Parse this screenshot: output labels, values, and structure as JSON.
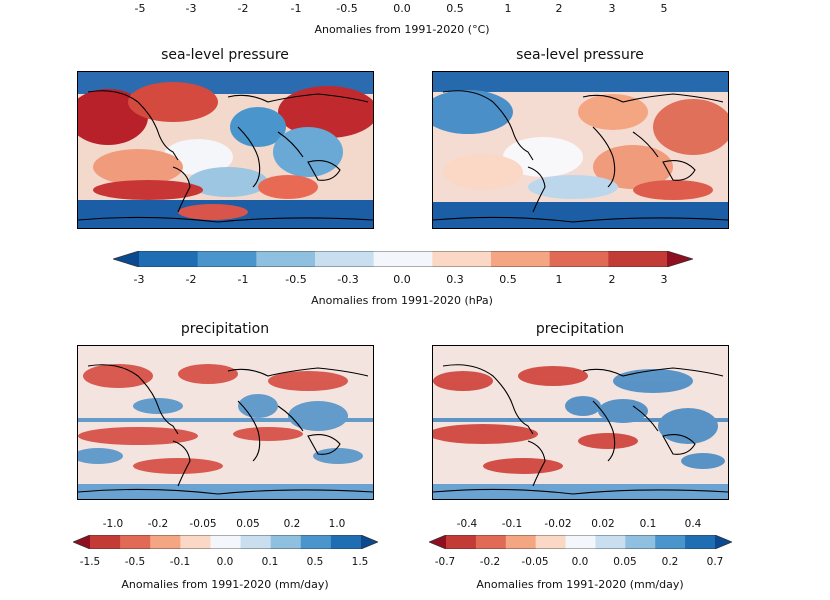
{
  "top_colorbar": {
    "ticks": [
      "-5",
      "-3",
      "-2",
      "-1",
      "-0.5",
      "0.0",
      "0.5",
      "1",
      "2",
      "3",
      "5"
    ],
    "caption": "Anomalies from 1991-2020 (°C)"
  },
  "slp": {
    "left_title": "sea-level pressure",
    "right_title": "sea-level pressure",
    "colorbar": {
      "ticks": [
        "-3",
        "-2",
        "-1",
        "-0.5",
        "-0.3",
        "0.0",
        "0.3",
        "0.5",
        "1",
        "2",
        "3"
      ],
      "caption": "Anomalies from 1991-2020 (hPa)",
      "colors": [
        "#0b4a8f",
        "#1f6eb4",
        "#4a96cc",
        "#8fc0df",
        "#c9dff0",
        "#f3f6fa",
        "#fbd7c5",
        "#f4a582",
        "#e06a55",
        "#c23b36",
        "#8e0f1f"
      ]
    }
  },
  "precip": {
    "left_title": "precipitation",
    "right_title": "precipitation",
    "left_colorbar": {
      "upper_ticks": [
        "-1.0",
        "-0.2",
        "-0.05",
        "0.05",
        "0.2",
        "1.0"
      ],
      "lower_ticks": [
        "-1.5",
        "-0.5",
        "-0.1",
        "0.0",
        "0.1",
        "0.5",
        "1.5"
      ],
      "caption": "Anomalies from 1991-2020 (mm/day)"
    },
    "right_colorbar": {
      "upper_ticks": [
        "-0.4",
        "-0.1",
        "-0.02",
        "0.02",
        "0.1",
        "0.4"
      ],
      "lower_ticks": [
        "-0.7",
        "-0.2",
        "-0.05",
        "0.0",
        "0.05",
        "0.2",
        "0.7"
      ],
      "caption": "Anomalies from 1991-2020 (mm/day)"
    },
    "colors": [
      "#8e0f1f",
      "#c23b36",
      "#e06a55",
      "#f4a582",
      "#fbd7c5",
      "#f3f6fa",
      "#c9dff0",
      "#8fc0df",
      "#4a96cc",
      "#1f6eb4",
      "#0b4a8f"
    ]
  }
}
